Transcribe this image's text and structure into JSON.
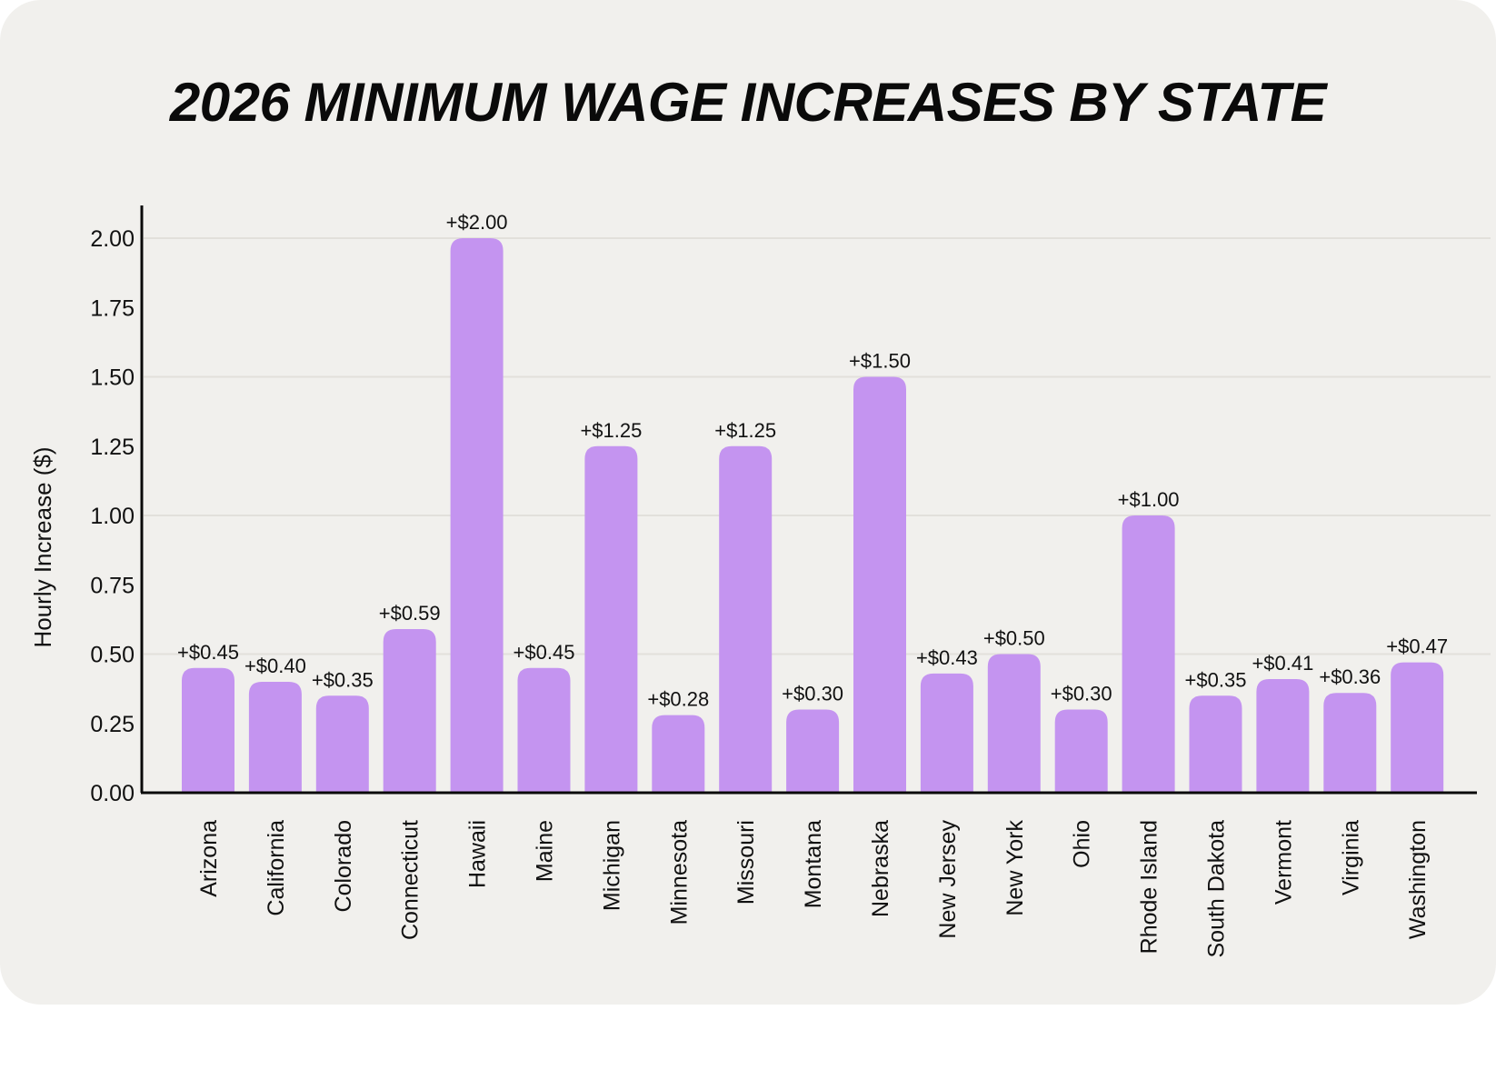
{
  "chart_data": {
    "type": "bar",
    "title": "2026 MINIMUM WAGE INCREASES BY STATE",
    "xlabel": "",
    "ylabel": "Hourly Increase ($)",
    "ylim": [
      0,
      2.0
    ],
    "yticks": [
      "0.00",
      "0.25",
      "0.50",
      "0.75",
      "1.00",
      "1.25",
      "1.50",
      "1.75",
      "2.00"
    ],
    "ytick_values": [
      0,
      0.25,
      0.5,
      0.75,
      1.0,
      1.25,
      1.5,
      1.75,
      2.0
    ],
    "gridlines": [
      0.5,
      1.0,
      1.5,
      2.0
    ],
    "grid": true,
    "legend": "none",
    "bar_color": "#c494f0",
    "categories": [
      "Arizona",
      "California",
      "Colorado",
      "Connecticut",
      "Hawaii",
      "Maine",
      "Michigan",
      "Minnesota",
      "Missouri",
      "Montana",
      "Nebraska",
      "New Jersey",
      "New York",
      "Ohio",
      "Rhode Island",
      "South Dakota",
      "Vermont",
      "Virginia",
      "Washington"
    ],
    "values": [
      0.45,
      0.4,
      0.35,
      0.59,
      2.0,
      0.45,
      1.25,
      0.28,
      1.25,
      0.3,
      1.5,
      0.43,
      0.5,
      0.3,
      1.0,
      0.35,
      0.41,
      0.36,
      0.47
    ],
    "data_labels": [
      "+$0.45",
      "+$0.40",
      "+$0.35",
      "+$0.59",
      "+$2.00",
      "+$0.45",
      "+$1.25",
      "+$0.28",
      "+$1.25",
      "+$0.30",
      "+$1.50",
      "+$0.43",
      "+$0.50",
      "+$0.30",
      "+$1.00",
      "+$0.35",
      "+$0.41",
      "+$0.36",
      "+$0.47"
    ]
  }
}
